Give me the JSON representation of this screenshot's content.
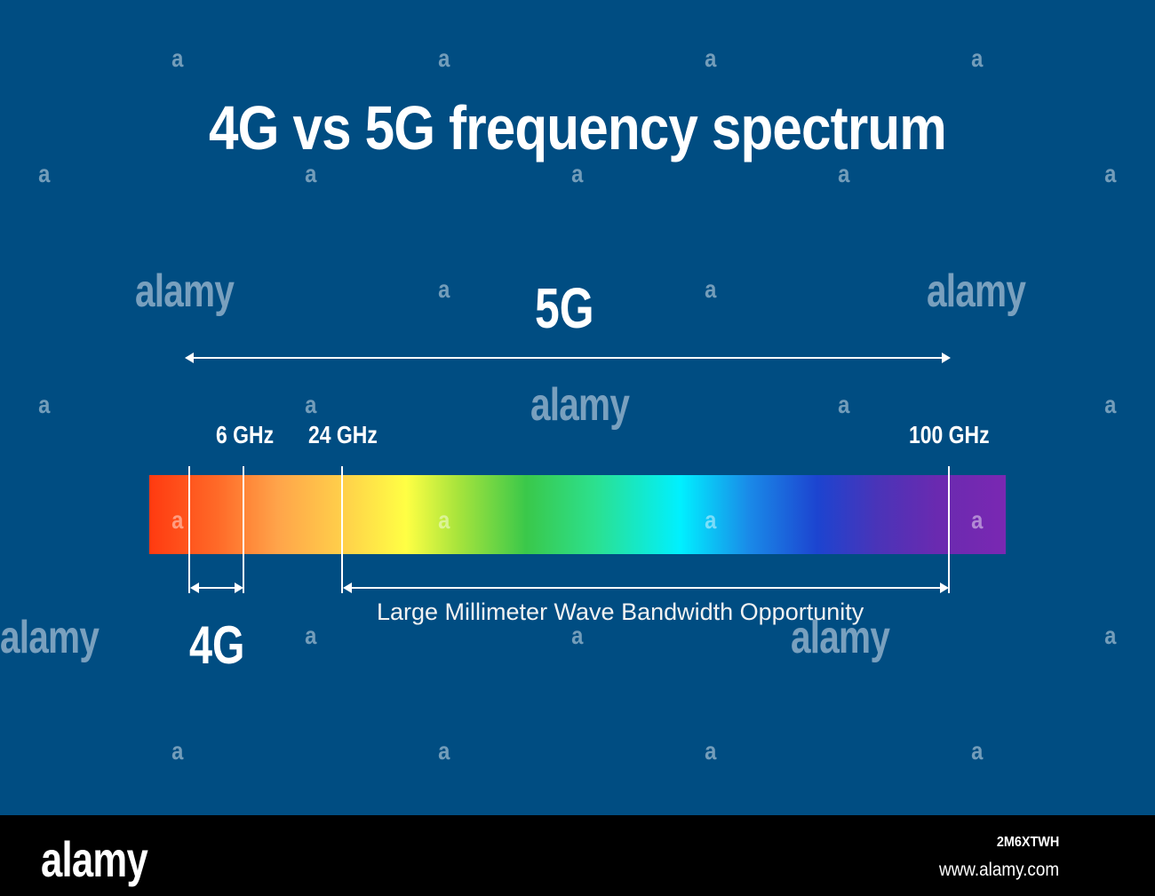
{
  "title": "4G vs 5G frequency spectrum",
  "spectrum": {
    "label_5g": "5G",
    "label_4g": "4G",
    "freq_6": "6 GHz",
    "freq_24": "24 GHz",
    "freq_100": "100 GHz",
    "mmwave_label": "Large Millimeter Wave Bandwidth Opportunity",
    "gradient_colors": [
      "#ff3a10",
      "#ffa44a",
      "#ffff44",
      "#3ac84a",
      "#00f0ff",
      "#1c44d0",
      "#7a28b2"
    ]
  },
  "colors": {
    "background": "#004d82",
    "footer": "#000000",
    "text": "#ffffff"
  },
  "watermark": {
    "mark": "a",
    "word": "alamy"
  },
  "footer": {
    "logo": "alamy",
    "image_id": "2M6XTWH",
    "url": "www.alamy.com"
  }
}
